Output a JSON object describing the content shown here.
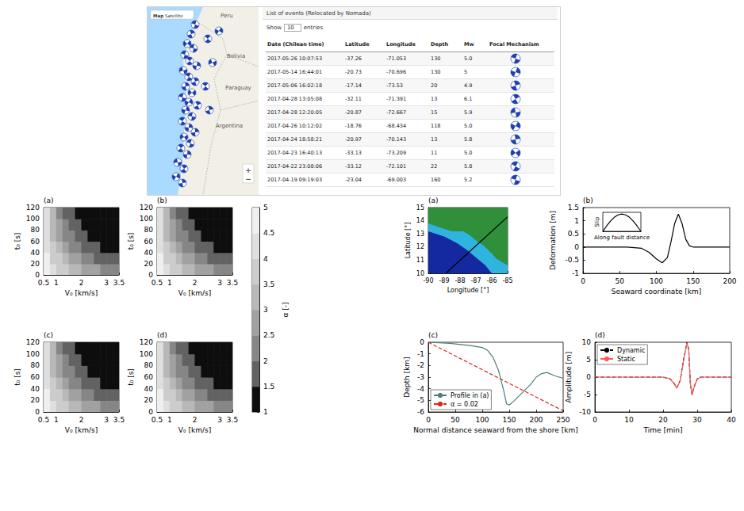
{
  "screenshot": {
    "map": {
      "buttons": [
        "Map",
        "Satellite"
      ],
      "places": [
        "Peru",
        "Bolivia",
        "Paraguay",
        "Argentina"
      ],
      "zoom": [
        "+",
        "−"
      ]
    },
    "table": {
      "title": "List of events (Relocated by Nomada)",
      "length_menu": [
        "Show",
        "10",
        "entries"
      ],
      "columns": [
        "Date (Chilean time)",
        "Latitude",
        "Longitude",
        "Depth",
        "Mw",
        "Focal Mechanism"
      ],
      "rows": [
        [
          "2017-05-26 10:07:53",
          "-37.26",
          "-71.053",
          "130",
          "5.0"
        ],
        [
          "2017-05-14 16:44:01",
          "-20.73",
          "-70.696",
          "130",
          "5"
        ],
        [
          "2017-05-06 16:02:18",
          "-17.14",
          "-73.53",
          "20",
          "4.9"
        ],
        [
          "2017-04-28 13:05:08",
          "-32.11",
          "-71.391",
          "13",
          "6.1"
        ],
        [
          "2017-04-28 12:20:05",
          "-20.87",
          "-72.667",
          "15",
          "5.9"
        ],
        [
          "2017-04-26 10:12:02",
          "-18.76",
          "-68.434",
          "118",
          "5.0"
        ],
        [
          "2017-04-24 18:58:21",
          "-20.97",
          "-70.143",
          "13",
          "5.8"
        ],
        [
          "2017-04-23 16:40:13",
          "-33.13",
          "-73.209",
          "11",
          "5.0"
        ],
        [
          "2017-04-22 23:08:06",
          "-33.12",
          "-72.101",
          "22",
          "5.8"
        ],
        [
          "2017-04-19 09:19:03",
          "-23.04",
          "-69.003",
          "160",
          "5.2"
        ]
      ]
    }
  },
  "colorbar": {
    "label": "α [-]",
    "range": [
      1,
      5
    ],
    "ticks": [
      1,
      1.5,
      2,
      2.5,
      3,
      3.5,
      4,
      4.5,
      5
    ]
  },
  "chart_data": [
    {
      "type": "contour",
      "title": "(a)",
      "xlabel": "V₀ [km/s]",
      "ylabel": "t₀ [s]",
      "xlim": [
        0.5,
        3.5
      ],
      "xticks": [
        0.5,
        1,
        2,
        3,
        3.5
      ],
      "ylim": [
        0,
        120
      ],
      "yticks": [
        0,
        20,
        40,
        60,
        80,
        100,
        120
      ],
      "x_edges": [
        0.5,
        0.75,
        1,
        1.25,
        1.5,
        1.75,
        2,
        2.25,
        2.5,
        2.75,
        3,
        3.25,
        3.5
      ],
      "y_edges": [
        0,
        20,
        40,
        60,
        80,
        100,
        120
      ],
      "cells": [
        [
          4.6,
          4.2,
          3.9,
          3.6,
          3.3,
          3.1,
          2.9,
          2.7,
          2.5,
          2.4,
          2.2,
          2.1
        ],
        [
          4.5,
          3.9,
          3.5,
          3.1,
          2.8,
          2.5,
          2.3,
          2.1,
          1.9,
          1.8,
          1.6,
          1.5
        ],
        [
          4.4,
          3.7,
          3.1,
          2.7,
          2.3,
          2.1,
          1.8,
          1.7,
          1.5,
          1.4,
          1.3,
          1.3
        ],
        [
          4.3,
          3.4,
          2.8,
          2.4,
          2,
          1.8,
          1.6,
          1.4,
          1.3,
          1.2,
          1.2,
          1.1
        ],
        [
          4.2,
          3.2,
          2.6,
          2.1,
          1.8,
          1.5,
          1.4,
          1.3,
          1.2,
          1.1,
          1.1,
          1.1
        ],
        [
          4.1,
          3,
          2.3,
          1.9,
          1.6,
          1.4,
          1.3,
          1.2,
          1.1,
          1.1,
          1,
          1
        ]
      ]
    },
    {
      "type": "contour",
      "title": "(b)",
      "xlabel": "V₀ [km/s]",
      "ylabel": "t₀ [s]",
      "xlim": [
        0.5,
        3.5
      ],
      "xticks": [
        0.5,
        1,
        2,
        3,
        3.5
      ],
      "ylim": [
        0,
        120
      ],
      "yticks": [
        0,
        20,
        40,
        60,
        80,
        100,
        120
      ],
      "x_edges": [
        0.5,
        0.75,
        1,
        1.25,
        1.5,
        1.75,
        2,
        2.25,
        2.5,
        2.75,
        3,
        3.25,
        3.5
      ],
      "y_edges": [
        0,
        20,
        40,
        60,
        80,
        100,
        120
      ],
      "cells": [
        [
          4.6,
          4.2,
          3.9,
          3.6,
          3.3,
          3.1,
          2.9,
          2.7,
          2.5,
          2.4,
          2.2,
          2.1
        ],
        [
          4.5,
          3.9,
          3.5,
          3.1,
          2.8,
          2.5,
          2.3,
          2.1,
          1.9,
          1.8,
          1.6,
          1.5
        ],
        [
          4.4,
          3.7,
          3.1,
          2.7,
          2.3,
          2.1,
          1.8,
          1.7,
          1.5,
          1.4,
          1.3,
          1.3
        ],
        [
          4.3,
          3.4,
          2.8,
          2.4,
          2,
          1.8,
          1.6,
          1.4,
          1.3,
          1.2,
          1.2,
          1.1
        ],
        [
          4.2,
          3.2,
          2.6,
          2.1,
          1.8,
          1.5,
          1.4,
          1.3,
          1.2,
          1.1,
          1.1,
          1.1
        ],
        [
          4.1,
          3,
          2.3,
          1.9,
          1.6,
          1.4,
          1.3,
          1.2,
          1.1,
          1.1,
          1,
          1
        ]
      ]
    },
    {
      "type": "contour",
      "title": "(c)",
      "xlabel": "V₀ [km/s]",
      "ylabel": "t₀ [s]",
      "xlim": [
        0.5,
        3.5
      ],
      "xticks": [
        0.5,
        1,
        2,
        3,
        3.5
      ],
      "ylim": [
        0,
        120
      ],
      "yticks": [
        0,
        20,
        40,
        60,
        80,
        100,
        120
      ],
      "x_edges": [
        0.5,
        0.75,
        1,
        1.25,
        1.5,
        1.75,
        2,
        2.25,
        2.5,
        2.75,
        3,
        3.25,
        3.5
      ],
      "y_edges": [
        0,
        20,
        40,
        60,
        80,
        100,
        120
      ],
      "cells": [
        [
          4.6,
          4.2,
          3.9,
          3.6,
          3.3,
          3.1,
          2.9,
          2.7,
          2.5,
          2.4,
          2.2,
          2.1
        ],
        [
          4.5,
          3.9,
          3.5,
          3.1,
          2.8,
          2.5,
          2.3,
          2.1,
          1.9,
          1.8,
          1.6,
          1.5
        ],
        [
          4.4,
          3.7,
          3.1,
          2.7,
          2.3,
          2.1,
          1.8,
          1.7,
          1.5,
          1.4,
          1.3,
          1.3
        ],
        [
          4.3,
          3.4,
          2.8,
          2.4,
          2,
          1.8,
          1.6,
          1.4,
          1.3,
          1.2,
          1.2,
          1.1
        ],
        [
          4.2,
          3.2,
          2.6,
          2.1,
          1.8,
          1.5,
          1.4,
          1.3,
          1.2,
          1.1,
          1.1,
          1.1
        ],
        [
          4.1,
          3,
          2.3,
          1.9,
          1.6,
          1.4,
          1.3,
          1.2,
          1.1,
          1.1,
          1,
          1
        ]
      ]
    },
    {
      "type": "contour",
      "title": "(d)",
      "xlabel": "V₀ [km/s]",
      "ylabel": "t₀ [s]",
      "xlim": [
        0.5,
        3.5
      ],
      "xticks": [
        0.5,
        1,
        2,
        3,
        3.5
      ],
      "ylim": [
        0,
        120
      ],
      "yticks": [
        0,
        20,
        40,
        60,
        80,
        100,
        120
      ],
      "x_edges": [
        0.5,
        0.75,
        1,
        1.25,
        1.5,
        1.75,
        2,
        2.25,
        2.5,
        2.75,
        3,
        3.25,
        3.5
      ],
      "y_edges": [
        0,
        20,
        40,
        60,
        80,
        100,
        120
      ],
      "cells": [
        [
          4.6,
          4.2,
          3.9,
          3.6,
          3.3,
          3.1,
          2.9,
          2.7,
          2.5,
          2.4,
          2.2,
          2.1
        ],
        [
          4.5,
          3.9,
          3.5,
          3.1,
          2.8,
          2.5,
          2.3,
          2.1,
          1.9,
          1.8,
          1.6,
          1.5
        ],
        [
          4.4,
          3.7,
          3.1,
          2.7,
          2.3,
          2.1,
          1.8,
          1.7,
          1.5,
          1.4,
          1.3,
          1.3
        ],
        [
          4.3,
          3.4,
          2.8,
          2.4,
          2,
          1.8,
          1.6,
          1.4,
          1.3,
          1.2,
          1.2,
          1.1
        ],
        [
          4.2,
          3.2,
          2.6,
          2.1,
          1.8,
          1.5,
          1.4,
          1.3,
          1.2,
          1.1,
          1.1,
          1.1
        ],
        [
          4.1,
          3,
          2.3,
          1.9,
          1.6,
          1.4,
          1.3,
          1.2,
          1.1,
          1.1,
          1,
          1
        ]
      ]
    },
    {
      "type": "map",
      "title": "(a)",
      "xlabel": "Longitude [°]",
      "ylabel": "Latitude [°]",
      "xlim": [
        -90,
        -85
      ],
      "xticks": [
        -90,
        -89,
        -88,
        -87,
        -86,
        -85
      ],
      "ylim": [
        10,
        15
      ],
      "yticks": [
        10,
        11,
        12,
        13,
        14,
        15
      ],
      "series": [
        {
          "type": "area",
          "color": "#1428a0",
          "values": [
            [
              -90,
              10
            ],
            [
              -85,
              10
            ],
            [
              -85,
              15
            ],
            [
              -90,
              15
            ]
          ]
        },
        {
          "type": "area",
          "color": "#2fb4e0",
          "values": [
            [
              -90,
              13.2
            ],
            [
              -89,
              12.8
            ],
            [
              -88.2,
              12.3
            ],
            [
              -87.6,
              11.8
            ],
            [
              -87,
              11.2
            ],
            [
              -86.4,
              10.6
            ],
            [
              -86,
              10
            ],
            [
              -85,
              10
            ],
            [
              -85,
              15
            ],
            [
              -90,
              15
            ]
          ]
        },
        {
          "type": "area",
          "color": "#2f8f3a",
          "values": [
            [
              -90,
              13.8
            ],
            [
              -89.3,
              13.5
            ],
            [
              -88.5,
              13.2
            ],
            [
              -87.8,
              13.2
            ],
            [
              -87.4,
              12.9
            ],
            [
              -87,
              12.5
            ],
            [
              -86.5,
              12.1
            ],
            [
              -86,
              11.5
            ],
            [
              -85.7,
              11.1
            ],
            [
              -85,
              10.6
            ],
            [
              -85,
              15
            ],
            [
              -90,
              15
            ]
          ]
        },
        {
          "type": "line",
          "color": "#000000",
          "line_style": "solid",
          "values": [
            [
              -88.9,
              10
            ],
            [
              -85,
              14.3
            ]
          ]
        }
      ]
    },
    {
      "type": "line",
      "title": "(b)",
      "xlabel": "Seaward coordinate [km]",
      "ylabel": "Deformation [m]",
      "xlim": [
        0,
        200
      ],
      "xticks": [
        0,
        50,
        100,
        150,
        200
      ],
      "ylim": [
        -1,
        1.5
      ],
      "yticks": [
        -1,
        -0.5,
        0,
        0.5,
        1,
        1.5
      ],
      "x": [
        0,
        60,
        80,
        90,
        100,
        108,
        115,
        120,
        125,
        130,
        135,
        140,
        145,
        150,
        200
      ],
      "series": [
        {
          "color": "#000000",
          "line_style": "solid",
          "values": [
            0,
            0,
            -0.05,
            -0.2,
            -0.45,
            -0.6,
            -0.4,
            0.2,
            0.9,
            1.25,
            0.9,
            0.3,
            0.05,
            0,
            0
          ]
        }
      ]
    },
    {
      "type": "line",
      "xlabel": "Along fault distance",
      "ylabel": "Slip",
      "xlim": [
        0,
        10
      ],
      "xticks": [],
      "ylim": [
        0,
        1.1
      ],
      "yticks": [],
      "tick_labels": false,
      "x": [
        0,
        1,
        2,
        3,
        4,
        5,
        6,
        7,
        8,
        9,
        10
      ],
      "series": [
        {
          "color": "#000000",
          "line_style": "solid",
          "values": [
            0,
            0.31,
            0.59,
            0.81,
            0.95,
            1,
            0.95,
            0.81,
            0.59,
            0.31,
            0
          ]
        }
      ]
    },
    {
      "type": "line",
      "title": "(c)",
      "xlabel": "Normal distance seaward from the shore [km]",
      "ylabel": "Depth [km]",
      "xlim": [
        0,
        250
      ],
      "xticks": [
        0,
        50,
        100,
        150,
        200,
        250
      ],
      "ylim": [
        -6,
        0
      ],
      "yticks": [
        -6,
        -5,
        -4,
        -3,
        -2,
        -1,
        0
      ],
      "legend": "lower left",
      "series": [
        {
          "name": "Profile in (a)",
          "color": "#4a7f7a",
          "line_style": "solid",
          "x": [
            0,
            20,
            40,
            60,
            80,
            100,
            110,
            120,
            130,
            140,
            145,
            150,
            160,
            175,
            190,
            200,
            210,
            220,
            235,
            250
          ],
          "values": [
            0,
            -0.05,
            -0.1,
            -0.2,
            -0.3,
            -0.45,
            -0.7,
            -1.3,
            -2.4,
            -4.2,
            -5.3,
            -5.4,
            -5,
            -4.3,
            -3.6,
            -3,
            -2.7,
            -2.6,
            -2.9,
            -3.1
          ]
        },
        {
          "name": "α = 0.02",
          "color": "#e0241c",
          "line_style": "dashed",
          "x": [
            0,
            250
          ],
          "values": [
            0,
            -5.9
          ]
        }
      ]
    },
    {
      "type": "line",
      "title": "(d)",
      "xlabel": "Time [min]",
      "ylabel": "Amplitude [m]",
      "xlim": [
        0,
        40
      ],
      "xticks": [
        0,
        10,
        20,
        30,
        40
      ],
      "ylim": [
        -10,
        10
      ],
      "yticks": [
        -10,
        -5,
        0,
        5,
        10
      ],
      "legend": "upper left",
      "x": [
        0,
        10,
        20,
        22,
        23,
        24,
        25,
        26,
        27,
        27.5,
        28,
        28.5,
        29,
        30,
        31,
        35,
        40
      ],
      "series": [
        {
          "name": "Dynamic",
          "color": "#000000",
          "line_style": "dashed",
          "values": [
            0,
            0,
            0,
            -0.5,
            -1.5,
            -3,
            -1,
            5,
            10,
            8,
            -2,
            -5,
            -3,
            -0.5,
            0,
            0,
            0
          ]
        },
        {
          "name": "Static",
          "color": "#ff5a5a",
          "line_style": "solid",
          "values": [
            0,
            0,
            0,
            -0.4,
            -1.6,
            -3.2,
            -1.2,
            4.8,
            9.8,
            8.2,
            -1.8,
            -5.2,
            -3.2,
            -0.6,
            0,
            0,
            0
          ]
        }
      ]
    }
  ]
}
